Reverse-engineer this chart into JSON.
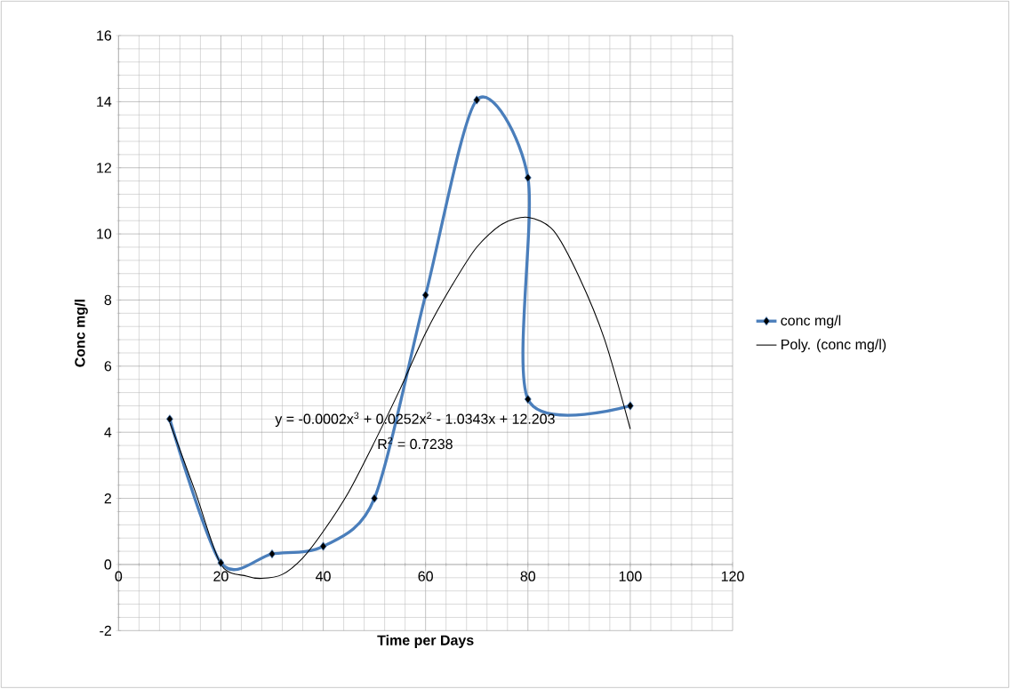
{
  "chart_data": {
    "type": "line",
    "xlabel": "Time per Days",
    "ylabel": "Conc mg/l",
    "xlim": [
      0,
      120
    ],
    "xticks": [
      0,
      20,
      40,
      60,
      80,
      100,
      120
    ],
    "ylim": [
      -2,
      16
    ],
    "yticks": [
      -2,
      0,
      2,
      4,
      6,
      8,
      10,
      12,
      14,
      16
    ],
    "grid": true,
    "legend": "right",
    "marker": "diamond",
    "annotations": [
      "y = -0.0002x$^{3}$ + 0.0252x$^{2}$ - 1.0343x + 12.203",
      "R$^{2}$ = 0.7238"
    ],
    "series": [
      {
        "name": "conc mg/l",
        "color": "#4a7ebb",
        "x": [
          10,
          20,
          30,
          40,
          50,
          60,
          70,
          80,
          80,
          100
        ],
        "values": [
          4.4,
          0.05,
          0.32,
          0.55,
          2.0,
          8.15,
          14.05,
          11.7,
          5.0,
          4.8
        ]
      },
      {
        "name": "Poly. (conc mg/l)",
        "color": "#000000",
        "marker": "none",
        "x": [
          10,
          15,
          20,
          25,
          28,
          32,
          36,
          40,
          45,
          50,
          55,
          60,
          65,
          70,
          75,
          80,
          85,
          90,
          95,
          100
        ],
        "values": [
          4.3,
          2.2,
          0.0,
          -0.35,
          -0.42,
          -0.3,
          0.2,
          1.0,
          2.2,
          3.7,
          5.3,
          7.0,
          8.4,
          9.6,
          10.3,
          10.5,
          10.1,
          8.7,
          6.8,
          4.1
        ]
      }
    ]
  }
}
